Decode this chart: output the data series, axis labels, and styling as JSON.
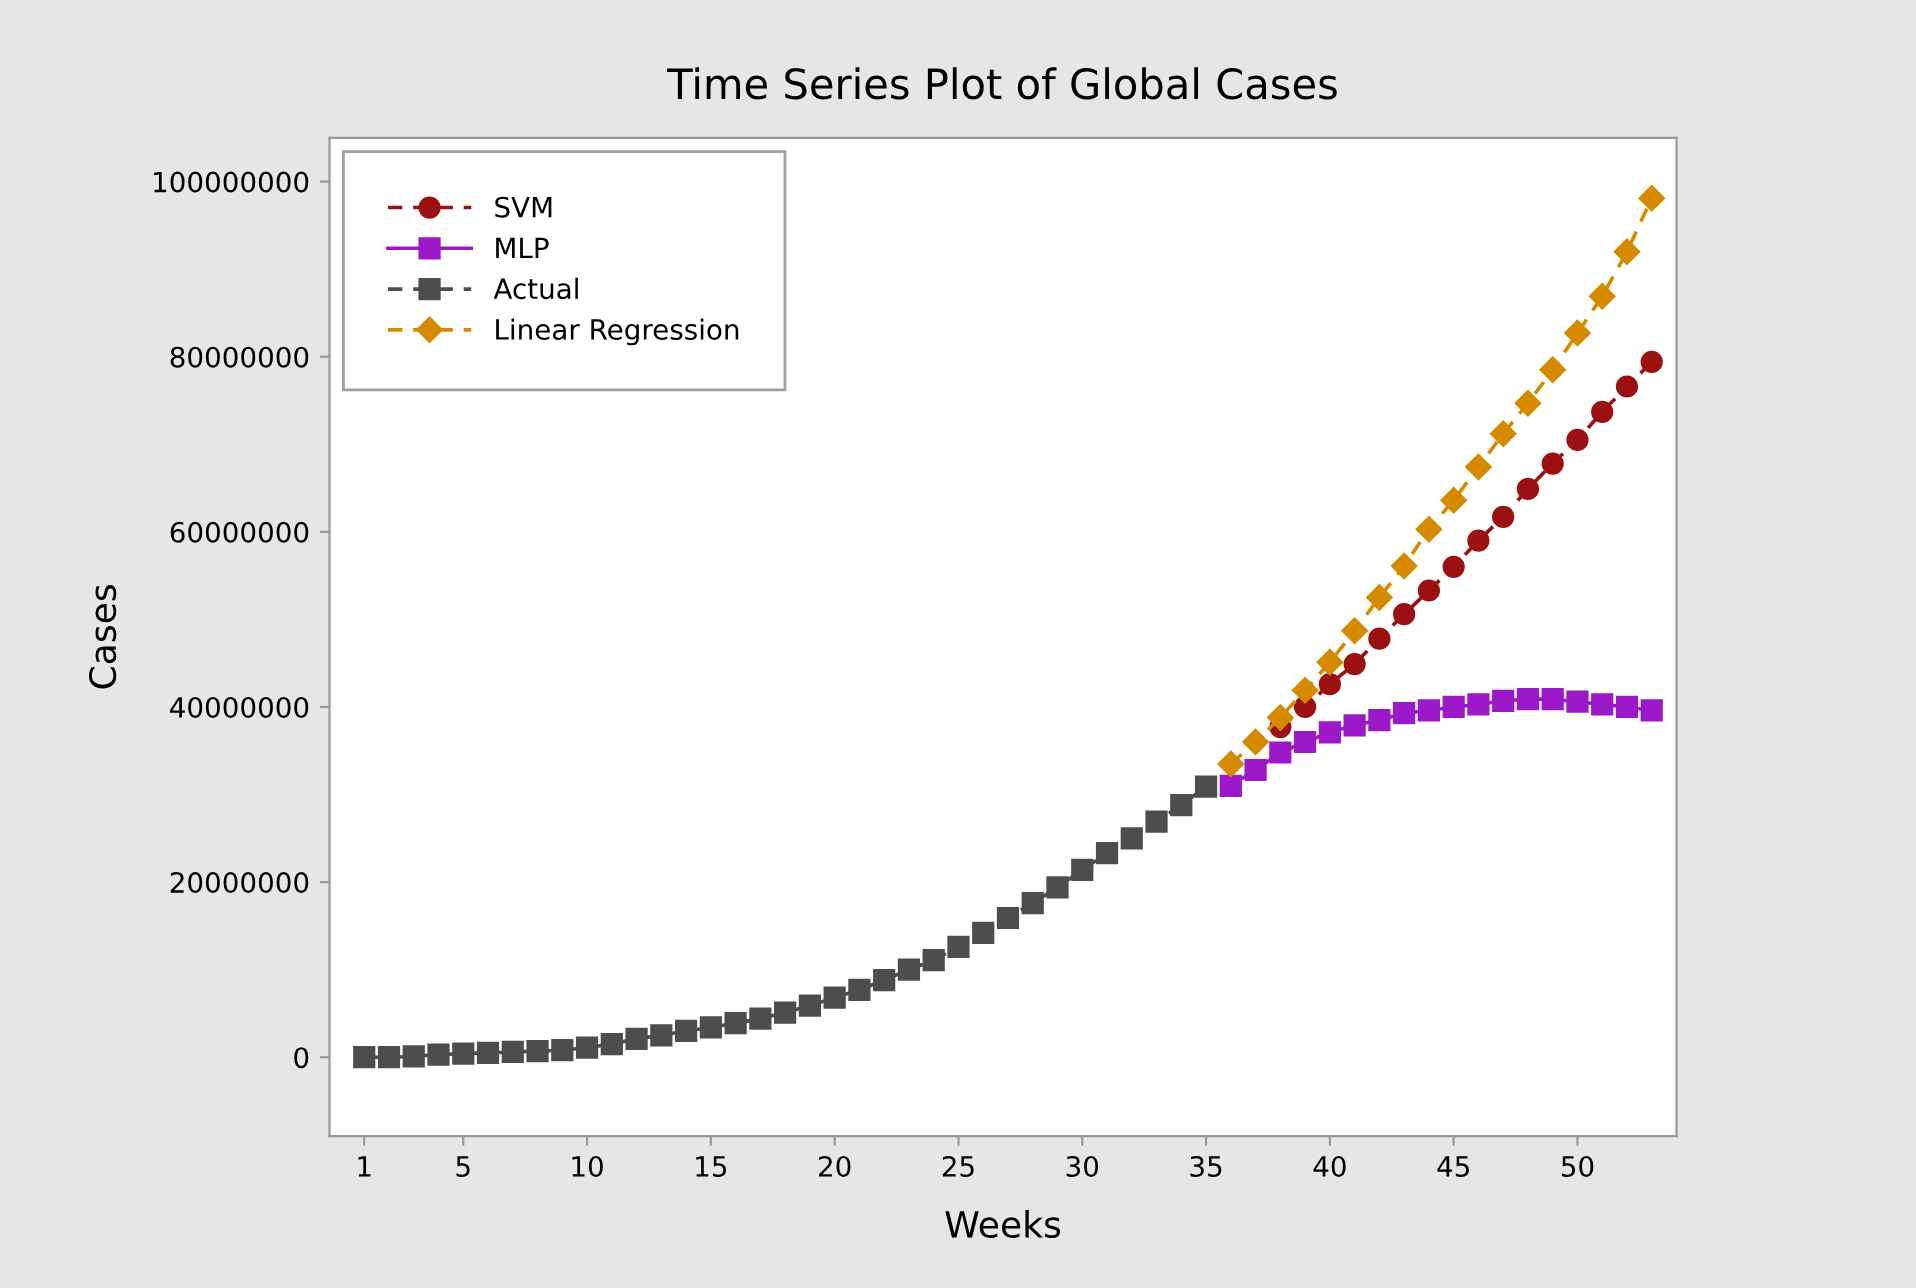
{
  "chart_data": {
    "type": "line",
    "title": "Time Series Plot of Global Cases",
    "xlabel": "Weeks",
    "ylabel": "Cases",
    "xlim": [
      -0.4,
      54
    ],
    "ylim": [
      -9000000,
      105000000
    ],
    "xticks": [
      1,
      5,
      10,
      15,
      20,
      25,
      30,
      35,
      40,
      45,
      50
    ],
    "yticks": [
      0,
      20000000,
      40000000,
      60000000,
      80000000,
      100000000
    ],
    "grid": false,
    "legend": "top left",
    "series": [
      {
        "name": "SVM",
        "color": "#9b1111",
        "marker": "circle",
        "line_style": "dashed",
        "x": [
          38,
          39,
          40,
          41,
          42,
          43,
          44,
          45,
          46,
          47,
          48,
          49,
          50,
          51,
          52,
          53
        ],
        "values": [
          37700000,
          40000000,
          42600000,
          44900000,
          47800000,
          50600000,
          53300000,
          56000000,
          59000000,
          61700000,
          64900000,
          67800000,
          70500000,
          73700000,
          76600000,
          79400000
        ]
      },
      {
        "name": "MLP",
        "color": "#9b19c8",
        "marker": "square",
        "line_style": "solid",
        "x": [
          36,
          37,
          38,
          39,
          40,
          41,
          42,
          43,
          44,
          45,
          46,
          47,
          48,
          49,
          50,
          51,
          52,
          53
        ],
        "values": [
          31000000,
          32800000,
          34800000,
          36000000,
          37100000,
          37900000,
          38500000,
          39300000,
          39600000,
          40000000,
          40300000,
          40700000,
          40900000,
          40900000,
          40600000,
          40300000,
          40000000,
          39600000
        ]
      },
      {
        "name": "Actual",
        "color": "#4d4d4d",
        "marker": "square",
        "line_style": "dashed",
        "x": [
          1,
          2,
          3,
          4,
          5,
          6,
          7,
          8,
          9,
          10,
          11,
          12,
          13,
          14,
          15,
          16,
          17,
          18,
          19,
          20,
          21,
          22,
          23,
          24,
          25,
          26,
          27,
          28,
          29,
          30,
          31,
          32,
          33,
          34,
          35
        ],
        "values": [
          0,
          0,
          100000,
          300000,
          400000,
          500000,
          600000,
          700000,
          800000,
          1100000,
          1500000,
          2100000,
          2500000,
          3000000,
          3400000,
          3900000,
          4400000,
          5100000,
          5900000,
          6800000,
          7700000,
          8800000,
          10000000,
          11100000,
          12600000,
          14200000,
          15900000,
          17600000,
          19400000,
          21400000,
          23300000,
          25000000,
          26900000,
          28800000,
          30900000
        ]
      },
      {
        "name": "Linear Regression",
        "color": "#d68a00",
        "marker": "diamond",
        "line_style": "dashed",
        "x": [
          36,
          37,
          38,
          39,
          40,
          41,
          42,
          43,
          44,
          45,
          46,
          47,
          48,
          49,
          50,
          51,
          52,
          53
        ],
        "values": [
          33500000,
          36000000,
          38800000,
          41900000,
          45100000,
          48700000,
          52500000,
          56100000,
          60300000,
          63600000,
          67400000,
          71200000,
          74700000,
          78500000,
          82700000,
          86900000,
          92000000,
          98100000
        ]
      }
    ]
  }
}
